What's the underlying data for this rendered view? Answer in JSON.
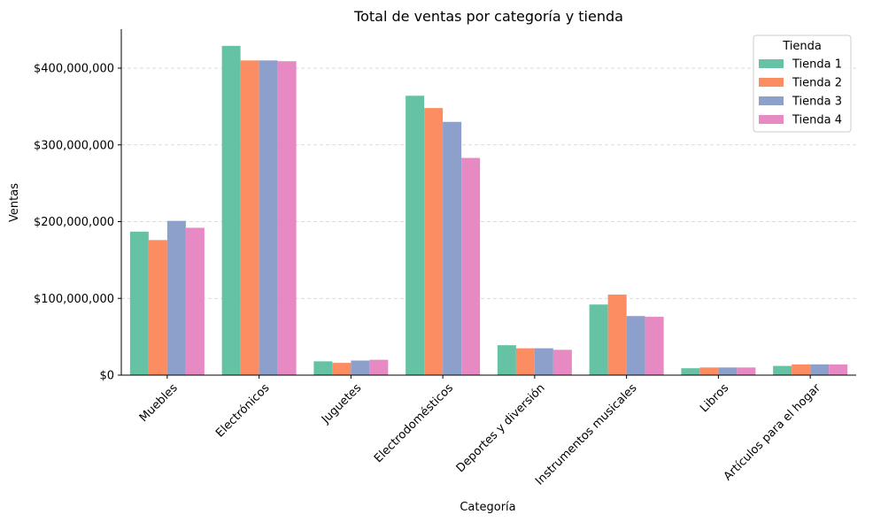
{
  "chart_data": {
    "type": "bar",
    "title": "Total de ventas por categoría y tienda",
    "xlabel": "Categoría",
    "ylabel": "Ventas",
    "ylim": [
      0,
      450000000
    ],
    "yticks": [
      0,
      100000000,
      200000000,
      300000000,
      400000000
    ],
    "ytick_labels": [
      "$0",
      "$100,000,000",
      "$200,000,000",
      "$300,000,000",
      "$400,000,000"
    ],
    "grid": "horizontal dashed",
    "legend": {
      "title": "Tienda",
      "placement": "top-right"
    },
    "categories": [
      "Muebles",
      "Electrónicos",
      "Juguetes",
      "Electrodomésticos",
      "Deportes y diversión",
      "Instrumentos musicales",
      "Libros",
      "Artículos para el hogar"
    ],
    "series": [
      {
        "name": "Tienda 1",
        "color": "#66c2a5",
        "values": [
          187000000,
          429000000,
          18000000,
          364000000,
          39000000,
          92000000,
          9000000,
          12000000
        ]
      },
      {
        "name": "Tienda 2",
        "color": "#fc8d62",
        "values": [
          176000000,
          410000000,
          16000000,
          348000000,
          35000000,
          105000000,
          10000000,
          14000000
        ]
      },
      {
        "name": "Tienda 3",
        "color": "#8da0cb",
        "values": [
          201000000,
          410000000,
          19000000,
          330000000,
          35000000,
          77000000,
          10000000,
          14000000
        ]
      },
      {
        "name": "Tienda 4",
        "color": "#e78ac3",
        "values": [
          192000000,
          409000000,
          20000000,
          283000000,
          33000000,
          76000000,
          10000000,
          14000000
        ]
      }
    ]
  }
}
